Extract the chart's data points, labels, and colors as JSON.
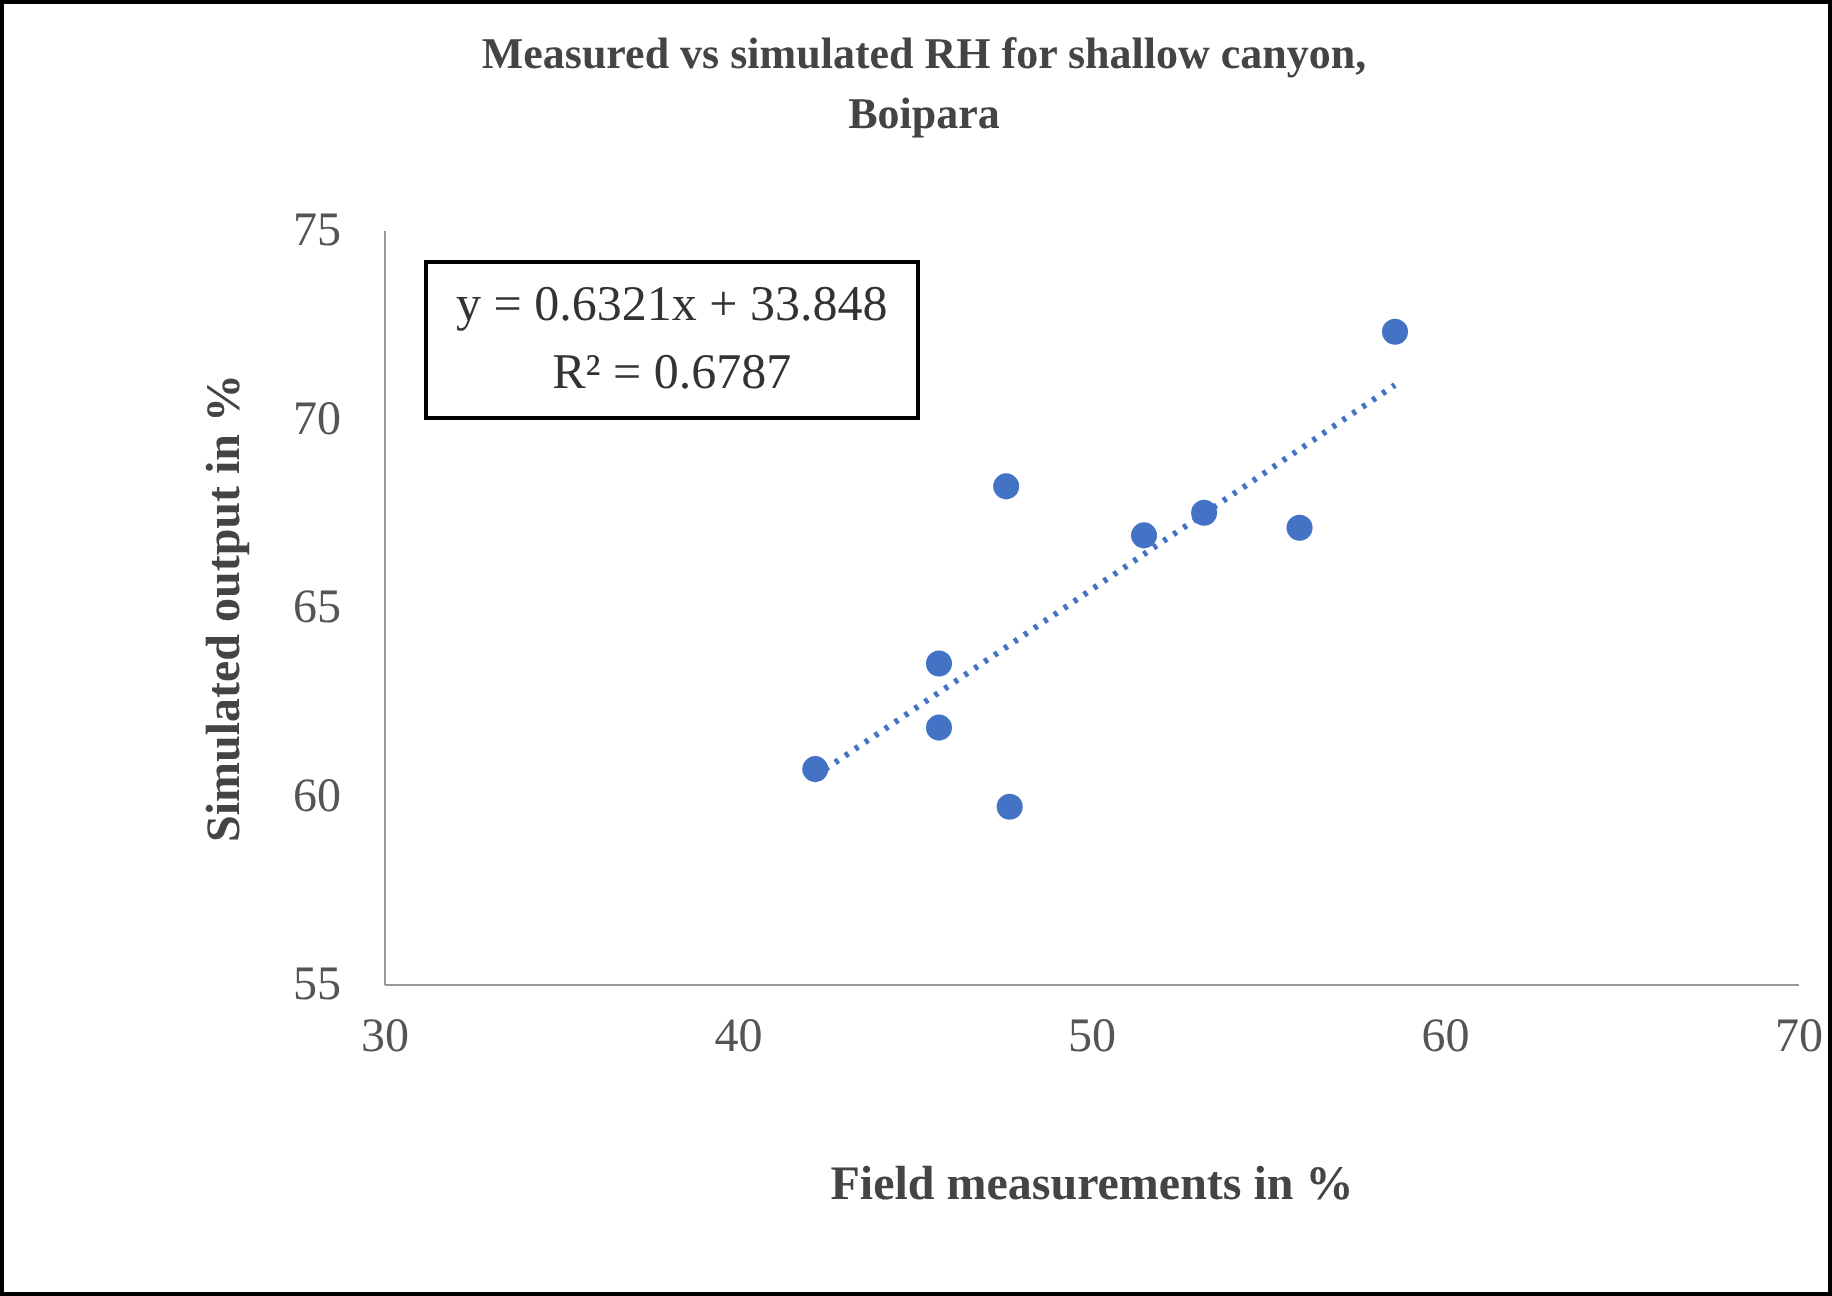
{
  "chart_data": {
    "type": "scatter",
    "title": "Measured vs simulated RH for shallow canyon, Boipara",
    "xlabel": "Field measurements in %",
    "ylabel": "Simulated output in %",
    "annotations": [
      "y = 0.6321x + 33.848",
      "R² = 0.6787"
    ],
    "series": [
      {
        "color": "#4472c4",
        "marker": "circle",
        "x": [
          42.2,
          45.7,
          45.7,
          47.6,
          47.7,
          51.5,
          53.2,
          55.9,
          58.6
        ],
        "values": [
          60.7,
          63.5,
          61.8,
          68.2,
          59.7,
          66.9,
          67.5,
          67.1,
          72.3
        ]
      },
      {
        "type": "line",
        "color": "#4472c4",
        "line_style": "dotted",
        "marker": "none",
        "x": [
          42.2,
          58.6
        ],
        "values": [
          60.52,
          70.89
        ]
      }
    ],
    "xlim": [
      30,
      70
    ],
    "xticks": [
      30,
      40,
      50,
      60,
      70
    ],
    "ylim": [
      55,
      75
    ],
    "yticks": [
      55,
      60,
      65,
      70,
      75
    ],
    "grid": false
  }
}
